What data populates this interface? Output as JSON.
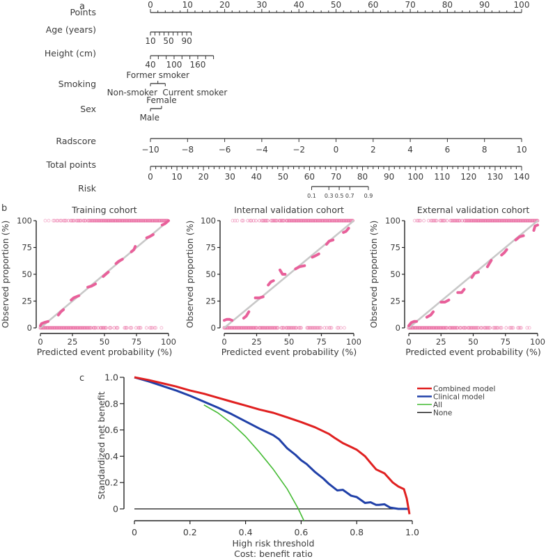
{
  "panel_labels": {
    "a": "a",
    "b": "b",
    "c": "c"
  },
  "chart_data": [
    {
      "type": "nomogram",
      "panel": "a",
      "rows": [
        {
          "name": "Points",
          "scale": {
            "min": 0,
            "max": 100,
            "major_step": 10,
            "minor_step": 2
          },
          "tick_labels": [
            "0",
            "10",
            "20",
            "30",
            "40",
            "50",
            "60",
            "70",
            "80",
            "90",
            "100"
          ],
          "labels_above": true
        },
        {
          "name": "Age (years)",
          "scale": {
            "min": 10,
            "max": 100,
            "step": 10,
            "points_min": 0,
            "points_max": 11
          },
          "tick_labels": [
            "10",
            "50",
            "90"
          ],
          "labeled_values": [
            10,
            50,
            90
          ]
        },
        {
          "name": "Height (cm)",
          "scale": {
            "min": 40,
            "max": 200,
            "step": 20,
            "points_min": 0,
            "points_max": 17
          },
          "tick_labels": [
            "40",
            "100",
            "160"
          ],
          "labeled_values": [
            40,
            100,
            160
          ]
        },
        {
          "name": "Smoking",
          "categories": [
            {
              "label": "Non-smoker",
              "points": 0,
              "position": "below"
            },
            {
              "label": "Former smoker",
              "points": 2,
              "position": "above"
            },
            {
              "label": "Current smoker",
              "points": 4,
              "position": "below"
            }
          ]
        },
        {
          "name": "Sex",
          "categories": [
            {
              "label": "Male",
              "points": 0,
              "position": "below"
            },
            {
              "label": "Female",
              "points": 3,
              "position": "above"
            }
          ]
        },
        {
          "name": "Radscore",
          "scale": {
            "min": -10,
            "max": 10,
            "step": 2,
            "points_min": 0,
            "points_max": 100
          },
          "tick_labels": [
            "−10",
            "−8",
            "−6",
            "−4",
            "−2",
            "0",
            "2",
            "4",
            "6",
            "8",
            "10"
          ]
        },
        {
          "name": "Total points",
          "scale": {
            "min": 0,
            "max": 140,
            "major_step": 10,
            "minor_step": 2
          },
          "tick_labels": [
            "0",
            "10",
            "20",
            "30",
            "40",
            "50",
            "60",
            "70",
            "80",
            "90",
            "100",
            "110",
            "120",
            "130",
            "140"
          ]
        },
        {
          "name": "Risk",
          "ticks": [
            {
              "label": "0.1",
              "total_points": 60.8
            },
            {
              "label": "0.3",
              "total_points": 67.3
            },
            {
              "label": "0.5",
              "total_points": 71.2
            },
            {
              "label": "0.7",
              "total_points": 75.2
            },
            {
              "label": "0.9",
              "total_points": 82.2
            }
          ]
        }
      ]
    },
    {
      "type": "scatter",
      "panel": "b",
      "title": "Training cohort",
      "xlabel": "Predicted event probability (%)",
      "ylabel": "Observed proportion (%)",
      "xlim": [
        0,
        100
      ],
      "ylim": [
        0,
        100
      ],
      "xticks": [
        "0",
        "25",
        "50",
        "75",
        "100"
      ],
      "yticks": [
        "0",
        "25",
        "50",
        "75",
        "100"
      ],
      "reference_line": [
        [
          0,
          0
        ],
        [
          100,
          100
        ]
      ],
      "calibration_segments": [
        [
          [
            0,
            2
          ],
          [
            1,
            4
          ],
          [
            3,
            5
          ],
          [
            6,
            6
          ]
        ],
        [
          [
            14,
            12
          ],
          [
            16,
            15
          ],
          [
            18,
            17
          ]
        ],
        [
          [
            24,
            26
          ],
          [
            26,
            28
          ],
          [
            30,
            30
          ]
        ],
        [
          [
            37,
            38
          ],
          [
            40,
            39
          ],
          [
            43,
            41
          ]
        ],
        [
          [
            49,
            48
          ],
          [
            51,
            50
          ],
          [
            53,
            52
          ]
        ],
        [
          [
            59,
            60
          ],
          [
            61,
            62
          ],
          [
            64,
            64
          ]
        ],
        [
          [
            71,
            71
          ],
          [
            73,
            73
          ],
          [
            74,
            76
          ]
        ],
        [
          [
            83,
            84
          ],
          [
            85,
            85
          ],
          [
            88,
            87
          ]
        ],
        [
          [
            95,
            96
          ],
          [
            97,
            97
          ],
          [
            99,
            99
          ],
          [
            100,
            100
          ]
        ]
      ],
      "rug_top_range": [
        2,
        100
      ],
      "rug_bottom_range": [
        0,
        100
      ]
    },
    {
      "type": "scatter",
      "panel": "b",
      "title": "Internal validation cohort",
      "xlabel": "Predicted event probability (%)",
      "ylabel": "Observed proportion (%)",
      "xlim": [
        0,
        100
      ],
      "ylim": [
        0,
        100
      ],
      "xticks": [
        "0",
        "25",
        "50",
        "75",
        "100"
      ],
      "yticks": [
        "0",
        "25",
        "50",
        "75",
        "100"
      ],
      "reference_line": [
        [
          0,
          0
        ],
        [
          100,
          100
        ]
      ],
      "calibration_segments": [
        [
          [
            0,
            7
          ],
          [
            2,
            8
          ],
          [
            4,
            8
          ],
          [
            6,
            7
          ]
        ],
        [
          [
            15,
            9
          ],
          [
            17,
            11
          ],
          [
            19,
            15
          ]
        ],
        [
          [
            24,
            28
          ],
          [
            27,
            28
          ],
          [
            30,
            29
          ]
        ],
        [
          [
            34,
            40
          ],
          [
            36,
            43
          ],
          [
            38,
            44
          ]
        ],
        [
          [
            43,
            54
          ],
          [
            45,
            50
          ],
          [
            47,
            50
          ]
        ],
        [
          [
            55,
            55
          ],
          [
            58,
            57
          ],
          [
            62,
            58
          ]
        ],
        [
          [
            68,
            66
          ],
          [
            70,
            67
          ],
          [
            73,
            69
          ]
        ],
        [
          [
            79,
            78
          ],
          [
            81,
            81
          ],
          [
            84,
            82
          ]
        ],
        [
          [
            92,
            89
          ],
          [
            94,
            90
          ],
          [
            96,
            93
          ]
        ]
      ],
      "rug_top_range": [
        2,
        100
      ],
      "rug_bottom_range": [
        0,
        98
      ]
    },
    {
      "type": "scatter",
      "panel": "b",
      "title": "External validation cohort",
      "xlabel": "Predicted event probability (%)",
      "ylabel": "Observed proportion (%)",
      "xlim": [
        0,
        100
      ],
      "ylim": [
        0,
        100
      ],
      "xticks": [
        "0",
        "25",
        "50",
        "75",
        "100"
      ],
      "yticks": [
        "0",
        "25",
        "50",
        "75",
        "100"
      ],
      "reference_line": [
        [
          0,
          0
        ],
        [
          100,
          100
        ]
      ],
      "calibration_segments": [
        [
          [
            0,
            2
          ],
          [
            2,
            5
          ],
          [
            4,
            6
          ],
          [
            6,
            6
          ]
        ],
        [
          [
            14,
            10
          ],
          [
            17,
            12
          ],
          [
            19,
            15
          ]
        ],
        [
          [
            25,
            24
          ],
          [
            28,
            24
          ],
          [
            31,
            26
          ]
        ],
        [
          [
            38,
            33
          ],
          [
            41,
            33
          ],
          [
            43,
            36
          ]
        ],
        [
          [
            49,
            47
          ],
          [
            51,
            51
          ],
          [
            54,
            52
          ]
        ],
        [
          [
            61,
            57
          ],
          [
            63,
            61
          ],
          [
            64,
            63
          ]
        ],
        [
          [
            72,
            68
          ],
          [
            74,
            70
          ],
          [
            76,
            73
          ]
        ],
        [
          [
            83,
            82
          ],
          [
            86,
            85
          ],
          [
            89,
            86
          ]
        ],
        [
          [
            97,
            91
          ],
          [
            98,
            95
          ],
          [
            100,
            96
          ]
        ]
      ],
      "rug_top_range": [
        0,
        100
      ],
      "rug_bottom_range": [
        0,
        100
      ]
    },
    {
      "type": "line",
      "panel": "c",
      "xlabel": "High risk threshold",
      "xlabel2": "Cost: benefit ratio",
      "ylabel": "Standardized net benefit",
      "xlim": [
        0,
        1.0
      ],
      "ylim": [
        0,
        1.0
      ],
      "xticks": [
        "0",
        "0.2",
        "0.4",
        "0.6",
        "0.8",
        "1.0"
      ],
      "yticks": [
        "0",
        "0.2",
        "0.4",
        "0.6",
        "0.8",
        "1.0"
      ],
      "legend_position": "top-right",
      "series": [
        {
          "name": "Combined model",
          "color": "#e02020",
          "x": [
            0,
            0.05,
            0.1,
            0.15,
            0.2,
            0.25,
            0.3,
            0.35,
            0.4,
            0.45,
            0.5,
            0.55,
            0.6,
            0.65,
            0.7,
            0.72,
            0.75,
            0.8,
            0.83,
            0.85,
            0.87,
            0.9,
            0.93,
            0.95,
            0.97,
            0.98,
            0.99
          ],
          "y": [
            1.0,
            0.98,
            0.955,
            0.93,
            0.9,
            0.875,
            0.845,
            0.815,
            0.785,
            0.755,
            0.73,
            0.695,
            0.66,
            0.62,
            0.57,
            0.54,
            0.5,
            0.45,
            0.4,
            0.35,
            0.3,
            0.27,
            0.2,
            0.17,
            0.15,
            0.08,
            -0.04
          ]
        },
        {
          "name": "Clinical model",
          "color": "#2040a8",
          "x": [
            0,
            0.05,
            0.1,
            0.15,
            0.2,
            0.25,
            0.3,
            0.35,
            0.4,
            0.45,
            0.5,
            0.52,
            0.55,
            0.58,
            0.6,
            0.62,
            0.65,
            0.68,
            0.7,
            0.73,
            0.75,
            0.78,
            0.8,
            0.83,
            0.85,
            0.87,
            0.88,
            0.9,
            0.92,
            0.95,
            0.99
          ],
          "y": [
            1.0,
            0.97,
            0.935,
            0.9,
            0.86,
            0.815,
            0.77,
            0.72,
            0.665,
            0.61,
            0.56,
            0.53,
            0.46,
            0.41,
            0.37,
            0.34,
            0.28,
            0.23,
            0.19,
            0.14,
            0.145,
            0.1,
            0.09,
            0.045,
            0.05,
            0.03,
            0.03,
            0.035,
            0.01,
            0.0,
            0.0
          ]
        },
        {
          "name": "All",
          "color": "#44bb33",
          "x": [
            0.25,
            0.3,
            0.35,
            0.4,
            0.45,
            0.5,
            0.55,
            0.59,
            0.61
          ],
          "y": [
            0.79,
            0.73,
            0.65,
            0.55,
            0.43,
            0.3,
            0.15,
            0.0,
            -0.09
          ]
        },
        {
          "name": "None",
          "color": "#111111",
          "x": [
            0,
            0.99
          ],
          "y": [
            0,
            0
          ]
        }
      ]
    }
  ]
}
